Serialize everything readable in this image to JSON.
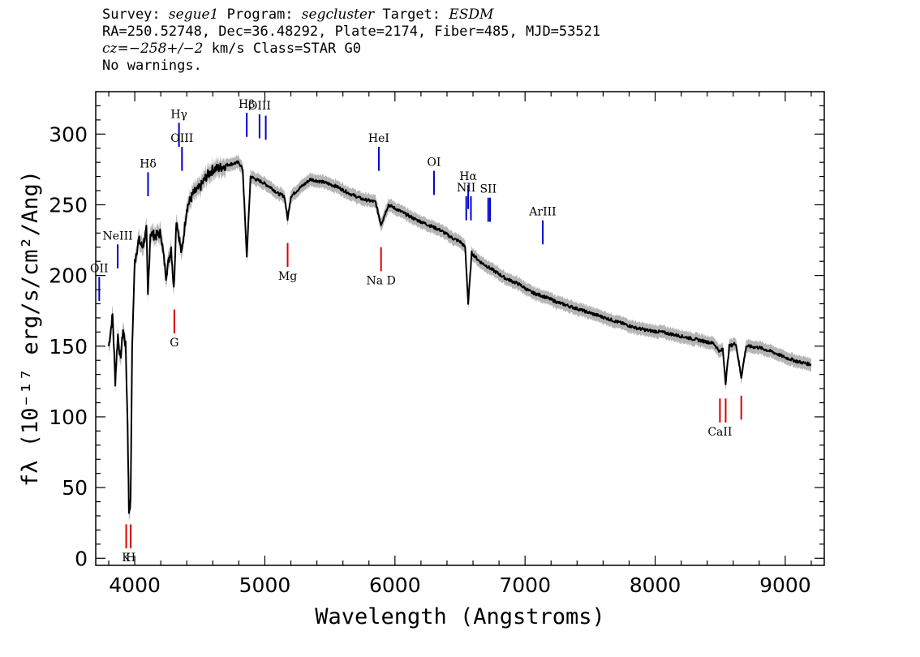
{
  "header": {
    "line1": {
      "survey_label": "Survey:",
      "survey": "segue1",
      "program_label": "Program:",
      "program": "segcluster",
      "target_label": "Target:",
      "target": "ESDM"
    },
    "line2": "RA=250.52748, Dec=36.48292, Plate=2174, Fiber=485, MJD=53521",
    "line3": {
      "cz": "cz=−258+/−2",
      "rest": "km/s  Class=STAR  G0"
    },
    "line4": "No warnings."
  },
  "chart_data": {
    "type": "line",
    "xlabel": "Wavelength (Angstroms)",
    "ylabel": "fλ (10⁻¹⁷ erg/s/cm²/Ang)",
    "xlim": [
      3700,
      9300
    ],
    "ylim": [
      -5,
      330
    ],
    "x_ticks": [
      4000,
      5000,
      6000,
      7000,
      8000,
      9000
    ],
    "y_ticks": [
      0,
      50,
      100,
      150,
      200,
      250,
      300
    ],
    "x_tick_labels": [
      "4000",
      "5000",
      "6000",
      "7000",
      "8000",
      "9000"
    ],
    "y_tick_labels": [
      "0",
      "50",
      "100",
      "150",
      "200",
      "250",
      "300"
    ],
    "grid": false,
    "colors": {
      "spectrum": "#000000",
      "error": "#b5b5b5",
      "emission": "#0000cc",
      "absorption": "#dd0000"
    },
    "series": [
      {
        "x": [
          3800,
          3830,
          3850,
          3870,
          3890,
          3910,
          3930,
          3945,
          3955,
          3968,
          3980,
          4000,
          4030,
          4060,
          4090,
          4101,
          4120,
          4160,
          4200,
          4240,
          4280,
          4300,
          4320,
          4360,
          4400,
          4450,
          4500,
          4550,
          4600,
          4650,
          4700,
          4750,
          4800,
          4830,
          4861,
          4890,
          4930,
          4980,
          5050,
          5100,
          5150,
          5175,
          5200,
          5270,
          5350,
          5450,
          5550,
          5650,
          5750,
          5850,
          5893,
          5950,
          6050,
          6150,
          6250,
          6350,
          6450,
          6500,
          6540,
          6563,
          6590,
          6650,
          6750,
          6850,
          6950,
          7050,
          7150,
          7250,
          7350,
          7450,
          7550,
          7650,
          7750,
          7850,
          7950,
          8050,
          8150,
          8250,
          8350,
          8450,
          8498,
          8520,
          8542,
          8570,
          8620,
          8662,
          8700,
          8800,
          8900,
          9000,
          9100,
          9200
        ],
        "y": [
          150,
          172,
          125,
          158,
          140,
          162,
          150,
          95,
          33,
          40,
          150,
          210,
          225,
          220,
          232,
          185,
          230,
          228,
          230,
          200,
          220,
          190,
          240,
          215,
          248,
          258,
          262,
          270,
          275,
          276,
          278,
          279,
          280,
          275,
          213,
          270,
          268,
          266,
          262,
          258,
          256,
          240,
          256,
          262,
          268,
          266,
          263,
          258,
          254,
          252,
          236,
          250,
          245,
          240,
          236,
          232,
          226,
          224,
          220,
          180,
          216,
          210,
          204,
          198,
          194,
          188,
          185,
          181,
          178,
          175,
          172,
          169,
          166,
          163,
          161,
          160,
          158,
          156,
          154,
          152,
          146,
          148,
          124,
          150,
          152,
          128,
          150,
          149,
          146,
          142,
          139,
          137
        ]
      }
    ],
    "lines": [
      {
        "name": "Hβ",
        "wave": 4861,
        "kind": "emission",
        "y_bottom": 298,
        "y_top": 315
      },
      {
        "name": "OIII",
        "wave": 4959,
        "kind": "emission",
        "y_bottom": 297,
        "y_top": 314
      },
      {
        "name": "",
        "wave": 5007,
        "kind": "emission",
        "y_bottom": 296,
        "y_top": 313
      },
      {
        "name": "Hγ",
        "wave": 4340,
        "kind": "emission",
        "y_bottom": 291,
        "y_top": 308
      },
      {
        "name": "OIII",
        "wave": 4363,
        "kind": "emission",
        "y_bottom": 274,
        "y_top": 291
      },
      {
        "name": "Hδ",
        "wave": 4102,
        "kind": "emission",
        "y_bottom": 256,
        "y_top": 273
      },
      {
        "name": "HeI",
        "wave": 5876,
        "kind": "emission",
        "y_bottom": 274,
        "y_top": 291
      },
      {
        "name": "OI",
        "wave": 6300,
        "kind": "emission",
        "y_bottom": 257,
        "y_top": 274
      },
      {
        "name": "Hα",
        "wave": 6563,
        "kind": "emission",
        "y_bottom": 247,
        "y_top": 264
      },
      {
        "name": "NII",
        "wave": 6548,
        "kind": "emission",
        "y_bottom": 239,
        "y_top": 256
      },
      {
        "name": "",
        "wave": 6584,
        "kind": "emission",
        "y_bottom": 239,
        "y_top": 256
      },
      {
        "name": "SII",
        "wave": 6717,
        "kind": "emission",
        "y_bottom": 238,
        "y_top": 255
      },
      {
        "name": "",
        "wave": 6731,
        "kind": "emission",
        "y_bottom": 238,
        "y_top": 255
      },
      {
        "name": "ArIII",
        "wave": 7136,
        "kind": "emission",
        "y_bottom": 222,
        "y_top": 239
      },
      {
        "name": "NeIII",
        "wave": 3869,
        "kind": "emission",
        "y_bottom": 205,
        "y_top": 222
      },
      {
        "name": "OII",
        "wave": 3727,
        "kind": "emission",
        "y_bottom": 182,
        "y_top": 199
      },
      {
        "name": "Mg",
        "wave": 5175,
        "kind": "absorption",
        "y_bottom": 206,
        "y_top": 223
      },
      {
        "name": "Na D",
        "wave": 5893,
        "kind": "absorption",
        "y_bottom": 203,
        "y_top": 220
      },
      {
        "name": "G",
        "wave": 4304,
        "kind": "absorption",
        "y_bottom": 159,
        "y_top": 176
      },
      {
        "name": "CaII",
        "wave": 8498,
        "kind": "absorption",
        "y_bottom": 96,
        "y_top": 113
      },
      {
        "name": "",
        "wave": 8542,
        "kind": "absorption",
        "y_bottom": 96,
        "y_top": 113
      },
      {
        "name": "",
        "wave": 8662,
        "kind": "absorption",
        "y_bottom": 98,
        "y_top": 115
      },
      {
        "name": "K",
        "wave": 3934,
        "kind": "absorption",
        "y_bottom": 7,
        "y_top": 24
      },
      {
        "name": "H",
        "wave": 3969,
        "kind": "absorption",
        "y_bottom": 7,
        "y_top": 24
      }
    ]
  }
}
